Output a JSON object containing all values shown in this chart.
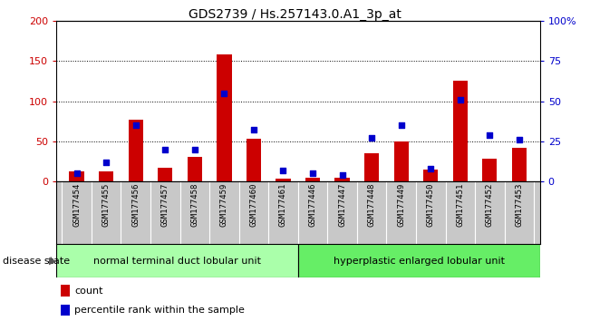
{
  "title": "GDS2739 / Hs.257143.0.A1_3p_at",
  "samples": [
    "GSM177454",
    "GSM177455",
    "GSM177456",
    "GSM177457",
    "GSM177458",
    "GSM177459",
    "GSM177460",
    "GSM177461",
    "GSM177446",
    "GSM177447",
    "GSM177448",
    "GSM177449",
    "GSM177450",
    "GSM177451",
    "GSM177452",
    "GSM177453"
  ],
  "count_values": [
    12,
    12,
    77,
    17,
    30,
    158,
    53,
    3,
    5,
    5,
    35,
    50,
    15,
    125,
    28,
    42
  ],
  "percentile_values": [
    5,
    12,
    35,
    20,
    20,
    55,
    32,
    7,
    5,
    4,
    27,
    35,
    8,
    51,
    29,
    26
  ],
  "group1_label": "normal terminal duct lobular unit",
  "group1_count": 8,
  "group2_label": "hyperplastic enlarged lobular unit",
  "group2_count": 8,
  "disease_state_label": "disease state",
  "count_color": "#cc0000",
  "percentile_color": "#0000cc",
  "ylim_left": [
    0,
    200
  ],
  "ylim_right": [
    0,
    100
  ],
  "yticks_left": [
    0,
    50,
    100,
    150,
    200
  ],
  "yticks_right": [
    0,
    25,
    50,
    75,
    100
  ],
  "yticklabels_right": [
    "0",
    "25",
    "50",
    "75",
    "100%"
  ],
  "group1_color": "#aaffaa",
  "group2_color": "#66ee66",
  "bg_color": "#c8c8c8"
}
